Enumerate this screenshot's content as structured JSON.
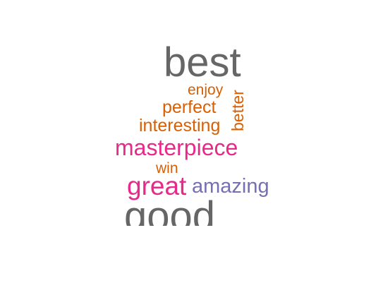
{
  "word_cloud": {
    "words": [
      {
        "text": "best",
        "color": "#666666"
      },
      {
        "text": "enjoy",
        "color": "#d95f02"
      },
      {
        "text": "better",
        "color": "#d95f02"
      },
      {
        "text": "perfect",
        "color": "#d95f02"
      },
      {
        "text": "interesting",
        "color": "#d95f02"
      },
      {
        "text": "masterpiece",
        "color": "#e7298a"
      },
      {
        "text": "win",
        "color": "#d95f02"
      },
      {
        "text": "great",
        "color": "#e7298a"
      },
      {
        "text": "amazing",
        "color": "#7570b3"
      },
      {
        "text": "good",
        "color": "#666666"
      }
    ]
  }
}
